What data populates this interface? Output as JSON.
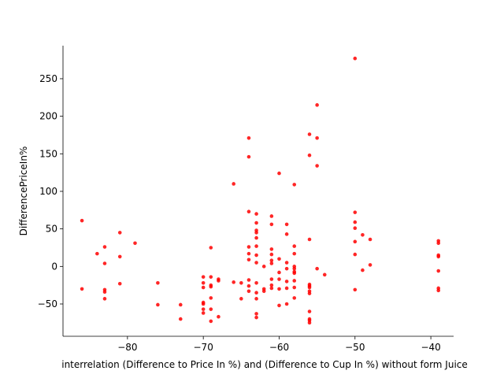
{
  "chart_data": {
    "type": "scatter",
    "title": "",
    "xlabel": "interrelation (Difference to Price In %) and (Difference to Cup In %) without form Juice",
    "ylabel": "DifferencePriceIn%",
    "xlim": [
      -88.5,
      -37
    ],
    "ylim": [
      -93,
      294
    ],
    "xticks": [
      -80,
      -70,
      -60,
      -50,
      -40
    ],
    "yticks": [
      -50,
      0,
      50,
      100,
      150,
      200,
      250
    ],
    "grid": false,
    "legend": "none",
    "marker_color": "#ff0000",
    "series": [
      {
        "x": [
          -86,
          -86,
          -84,
          -83,
          -83,
          -83,
          -83,
          -83,
          -81,
          -81,
          -81,
          -79,
          -76,
          -76,
          -73,
          -73,
          -70,
          -70,
          -70,
          -70,
          -70,
          -70,
          -70,
          -69,
          -69,
          -69,
          -69,
          -69,
          -69,
          -69,
          -68,
          -68,
          -68,
          -66,
          -66,
          -65,
          -65,
          -64,
          -64,
          -64,
          -64,
          -64,
          -64,
          -64,
          -64,
          -64,
          -63,
          -63,
          -63,
          -63,
          -63,
          -63,
          -63,
          -63,
          -63,
          -63,
          -63,
          -63,
          -63,
          -62,
          -62,
          -62,
          -61,
          -61,
          -61,
          -61,
          -61,
          -61,
          -61,
          -61,
          -61,
          -60,
          -60,
          -60,
          -60,
          -60,
          -60,
          -59,
          -59,
          -59,
          -59,
          -59,
          -59,
          -59,
          -58,
          -58,
          -58,
          -58,
          -58,
          -58,
          -58,
          -58,
          -58,
          -58,
          -56,
          -56,
          -56,
          -56,
          -56,
          -56,
          -56,
          -56,
          -56,
          -56,
          -56,
          -56,
          -55,
          -55,
          -55,
          -55,
          -54,
          -50,
          -50,
          -50,
          -50,
          -50,
          -50,
          -50,
          -49,
          -49,
          -48,
          -48,
          -39,
          -39,
          -39,
          -39,
          -39,
          -39,
          -39
        ],
        "y": [
          61,
          -30,
          17,
          26,
          4,
          -31,
          -34,
          -43,
          45,
          13,
          -23,
          31,
          -22,
          -51,
          -51,
          -70,
          -14,
          -22,
          -28,
          -48,
          -50,
          -57,
          -62,
          -73,
          25,
          -14,
          -25,
          -27,
          -42,
          -57,
          -67,
          -17,
          -19,
          -21,
          110,
          -43,
          -22,
          -26,
          171,
          146,
          73,
          26,
          17,
          9,
          -18,
          -33,
          70,
          58,
          48,
          45,
          38,
          27,
          15,
          5,
          -22,
          -35,
          -43,
          -63,
          -68,
          -30,
          -33,
          0,
          67,
          56,
          23,
          16,
          8,
          4,
          -17,
          -25,
          -29,
          124,
          10,
          -8,
          -17,
          -30,
          -52,
          56,
          43,
          5,
          -3,
          -20,
          -29,
          -50,
          109,
          27,
          17,
          0,
          -3,
          -7,
          -9,
          -19,
          -28,
          -42,
          176,
          148,
          36,
          -24,
          -26,
          -28,
          -33,
          -36,
          -60,
          -70,
          -72,
          -75,
          215,
          171,
          134,
          -3,
          -11,
          277,
          72,
          59,
          51,
          33,
          16,
          -31,
          42,
          -5,
          36,
          2,
          34,
          31,
          15,
          13,
          -6,
          -29,
          -32
        ]
      }
    ]
  }
}
